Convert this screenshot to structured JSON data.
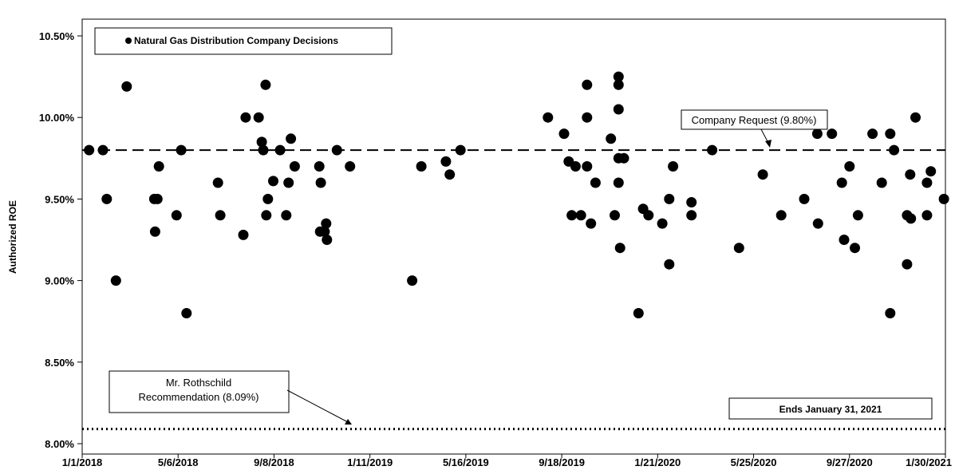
{
  "chart_data": {
    "type": "scatter",
    "ylabel": "Authorized ROE",
    "xlabel": "",
    "ylim": [
      8.0,
      10.5
    ],
    "xlim": [
      "2018-01-01",
      "2021-01-30"
    ],
    "y_ticks": [
      "8.00%",
      "8.50%",
      "9.00%",
      "9.50%",
      "10.00%",
      "10.50%"
    ],
    "y_tick_values": [
      8.0,
      8.5,
      9.0,
      9.5,
      10.0,
      10.5
    ],
    "x_ticks": [
      "1/1/2018",
      "5/6/2018",
      "9/8/2018",
      "1/11/2019",
      "5/16/2019",
      "9/18/2019",
      "1/21/2020",
      "5/25/2020",
      "9/27/2020",
      "1/30/2021"
    ],
    "x_tick_dates": [
      "2018-01-01",
      "2018-05-06",
      "2018-09-08",
      "2019-01-11",
      "2019-05-16",
      "2019-09-18",
      "2020-01-21",
      "2020-05-25",
      "2020-09-27",
      "2021-01-30"
    ],
    "legend": {
      "label": "Natural Gas Distribution Company Decisions",
      "position": "top-left"
    },
    "series": [
      {
        "name": "Natural Gas Distribution Company Decisions",
        "points": [
          {
            "x": "2018-01-10",
            "y": 9.8
          },
          {
            "x": "2018-01-28",
            "y": 9.8
          },
          {
            "x": "2018-02-02",
            "y": 9.5
          },
          {
            "x": "2018-02-14",
            "y": 9.0
          },
          {
            "x": "2018-02-28",
            "y": 10.19
          },
          {
            "x": "2018-04-05",
            "y": 9.5
          },
          {
            "x": "2018-04-06",
            "y": 9.3
          },
          {
            "x": "2018-04-09",
            "y": 9.5
          },
          {
            "x": "2018-04-11",
            "y": 9.7
          },
          {
            "x": "2018-05-04",
            "y": 9.4
          },
          {
            "x": "2018-05-10",
            "y": 9.8
          },
          {
            "x": "2018-05-17",
            "y": 8.8
          },
          {
            "x": "2018-06-27",
            "y": 9.6
          },
          {
            "x": "2018-06-30",
            "y": 9.4
          },
          {
            "x": "2018-07-30",
            "y": 9.28
          },
          {
            "x": "2018-08-02",
            "y": 10.0
          },
          {
            "x": "2018-08-19",
            "y": 10.0
          },
          {
            "x": "2018-08-23",
            "y": 9.85
          },
          {
            "x": "2018-08-25",
            "y": 9.8
          },
          {
            "x": "2018-08-28",
            "y": 10.2
          },
          {
            "x": "2018-08-29",
            "y": 9.4
          },
          {
            "x": "2018-08-31",
            "y": 9.5
          },
          {
            "x": "2018-09-07",
            "y": 9.61
          },
          {
            "x": "2018-09-16",
            "y": 9.8
          },
          {
            "x": "2018-09-24",
            "y": 9.4
          },
          {
            "x": "2018-09-27",
            "y": 9.6
          },
          {
            "x": "2018-09-30",
            "y": 9.87
          },
          {
            "x": "2018-10-05",
            "y": 9.7
          },
          {
            "x": "2018-11-06",
            "y": 9.7
          },
          {
            "x": "2018-11-07",
            "y": 9.3
          },
          {
            "x": "2018-11-08",
            "y": 9.6
          },
          {
            "x": "2018-11-13",
            "y": 9.3
          },
          {
            "x": "2018-11-15",
            "y": 9.35
          },
          {
            "x": "2018-11-16",
            "y": 9.25
          },
          {
            "x": "2018-11-29",
            "y": 9.8
          },
          {
            "x": "2018-12-16",
            "y": 9.7
          },
          {
            "x": "2019-03-07",
            "y": 9.0
          },
          {
            "x": "2019-03-19",
            "y": 9.7
          },
          {
            "x": "2019-04-20",
            "y": 9.73
          },
          {
            "x": "2019-04-25",
            "y": 9.65
          },
          {
            "x": "2019-05-09",
            "y": 9.8
          },
          {
            "x": "2019-08-31",
            "y": 10.0
          },
          {
            "x": "2019-09-21",
            "y": 9.9
          },
          {
            "x": "2019-09-27",
            "y": 9.73
          },
          {
            "x": "2019-10-01",
            "y": 9.4
          },
          {
            "x": "2019-10-06",
            "y": 9.7
          },
          {
            "x": "2019-10-13",
            "y": 9.4
          },
          {
            "x": "2019-10-21",
            "y": 10.0
          },
          {
            "x": "2019-10-21",
            "y": 9.7
          },
          {
            "x": "2019-10-21",
            "y": 10.2
          },
          {
            "x": "2019-10-26",
            "y": 9.35
          },
          {
            "x": "2019-11-01",
            "y": 9.6
          },
          {
            "x": "2019-11-21",
            "y": 9.87
          },
          {
            "x": "2019-11-26",
            "y": 9.4
          },
          {
            "x": "2019-12-01",
            "y": 10.25
          },
          {
            "x": "2019-12-01",
            "y": 10.2
          },
          {
            "x": "2019-12-01",
            "y": 10.05
          },
          {
            "x": "2019-12-01",
            "y": 9.75
          },
          {
            "x": "2019-12-01",
            "y": 9.6
          },
          {
            "x": "2019-12-03",
            "y": 9.2
          },
          {
            "x": "2019-12-08",
            "y": 9.75
          },
          {
            "x": "2019-12-27",
            "y": 8.8
          },
          {
            "x": "2020-01-02",
            "y": 9.44
          },
          {
            "x": "2020-01-09",
            "y": 9.4
          },
          {
            "x": "2020-01-27",
            "y": 9.35
          },
          {
            "x": "2020-02-05",
            "y": 9.5
          },
          {
            "x": "2020-02-05",
            "y": 9.1
          },
          {
            "x": "2020-02-10",
            "y": 9.7
          },
          {
            "x": "2020-03-05",
            "y": 9.48
          },
          {
            "x": "2020-03-05",
            "y": 9.4
          },
          {
            "x": "2020-04-01",
            "y": 9.8
          },
          {
            "x": "2020-05-06",
            "y": 9.2
          },
          {
            "x": "2020-06-06",
            "y": 9.65
          },
          {
            "x": "2020-06-30",
            "y": 9.4
          },
          {
            "x": "2020-07-30",
            "y": 9.5
          },
          {
            "x": "2020-08-16",
            "y": 9.9
          },
          {
            "x": "2020-08-17",
            "y": 9.35
          },
          {
            "x": "2020-09-04",
            "y": 9.9
          },
          {
            "x": "2020-09-17",
            "y": 9.6
          },
          {
            "x": "2020-09-20",
            "y": 9.25
          },
          {
            "x": "2020-09-27",
            "y": 9.7
          },
          {
            "x": "2020-10-04",
            "y": 9.2
          },
          {
            "x": "2020-10-08",
            "y": 9.4
          },
          {
            "x": "2020-10-27",
            "y": 9.9
          },
          {
            "x": "2020-11-08",
            "y": 9.6
          },
          {
            "x": "2020-11-19",
            "y": 9.9
          },
          {
            "x": "2020-11-19",
            "y": 8.8
          },
          {
            "x": "2020-11-24",
            "y": 9.8
          },
          {
            "x": "2020-12-11",
            "y": 9.1
          },
          {
            "x": "2020-12-11",
            "y": 9.4
          },
          {
            "x": "2020-12-15",
            "y": 9.65
          },
          {
            "x": "2020-12-16",
            "y": 9.38
          },
          {
            "x": "2020-12-22",
            "y": 10.0
          },
          {
            "x": "2021-01-06",
            "y": 9.6
          },
          {
            "x": "2021-01-06",
            "y": 9.4
          },
          {
            "x": "2021-01-11",
            "y": 9.67
          },
          {
            "x": "2021-01-28",
            "y": 9.5
          }
        ]
      }
    ],
    "reference_lines": [
      {
        "name": "Company Request",
        "label": "Company Request (9.80%)",
        "y": 9.8,
        "style": "dashed"
      },
      {
        "name": "Mr. Rothschild Recommendation",
        "label_lines": [
          "Mr. Rothschild",
          "Recommendation (8.09%)"
        ],
        "y": 8.09,
        "style": "dotted"
      }
    ],
    "annotations": [
      {
        "text": "Ends January 31, 2021"
      }
    ],
    "grid": false
  }
}
